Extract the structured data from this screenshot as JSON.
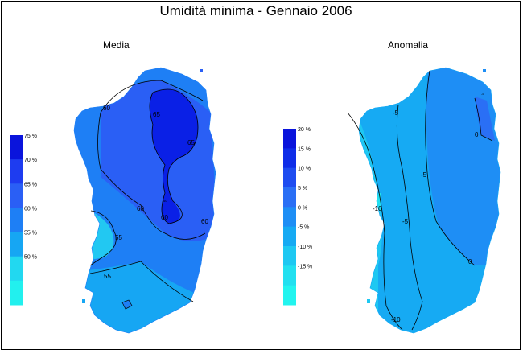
{
  "title": "Umidità minima - Gennaio 2006",
  "panels": [
    {
      "title": "Media",
      "legend": {
        "labels": [
          "75 %",
          "70 %",
          "65 %",
          "60 %",
          "55 %",
          "50 %"
        ],
        "colors": [
          "#0a14dc",
          "#1e3cf0",
          "#2a5ff5",
          "#1e7ff5",
          "#16a6f3",
          "#22d8f0",
          "#22f0ee"
        ]
      },
      "contour_labels": [
        "60",
        "65",
        "65",
        "60",
        "60",
        "60",
        "55",
        "55",
        "60"
      ]
    },
    {
      "title": "Anomalia",
      "legend": {
        "labels": [
          "20 %",
          "15 %",
          "10 %",
          "5 %",
          "0 %",
          "-5 %",
          "-10 %",
          "-15 %"
        ],
        "colors": [
          "#0a14dc",
          "#0f2de8",
          "#1e4cf0",
          "#2a6ff5",
          "#1e8ef5",
          "#16aaf3",
          "#1ec8f2",
          "#22e0f0",
          "#22f4ef"
        ]
      },
      "contour_labels": [
        "-5",
        "0",
        "-5",
        "-5",
        "0",
        "-10",
        "-10",
        "-5"
      ]
    }
  ]
}
